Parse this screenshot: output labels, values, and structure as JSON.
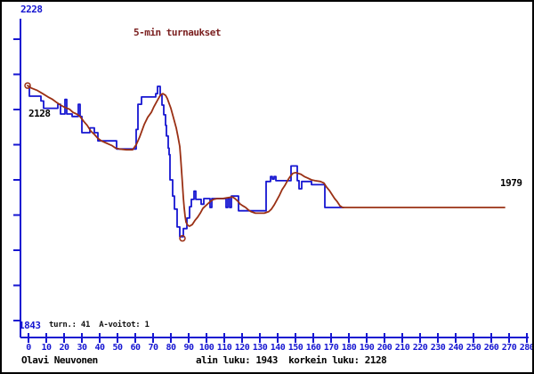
{
  "window": {
    "background": "#ffffff",
    "border_color": "#000000"
  },
  "colors": {
    "axis_blue": "#1616d1",
    "series_blue": "#1616d1",
    "series_brown": "#9a3014",
    "title_maroon": "#7b2020",
    "black_text": "#000000"
  },
  "chart_data": {
    "type": "line",
    "title": "5-min turnaukset",
    "legend": "none",
    "grid": false,
    "x_axis": {
      "ticks": [
        0,
        10,
        20,
        30,
        40,
        50,
        60,
        70,
        80,
        90,
        100,
        110,
        120,
        130,
        140,
        150,
        160,
        170,
        180,
        190,
        200,
        210,
        220,
        230,
        240,
        250,
        260,
        270,
        280
      ]
    },
    "y_axis": {
      "top_label": "2228",
      "bottom_label": "1843",
      "n_ticks": 9
    },
    "annotations": {
      "start_value_label": "2128",
      "final_value_label": "1979",
      "stats_line": "turn.: 41  A-voitot: 1"
    },
    "footer": {
      "left": "Olavi Neuvonen",
      "right": "alin luku: 1943  korkein luku: 2128"
    },
    "series": [
      {
        "name": "rating-per-tournament",
        "color_key": "series_blue",
        "points": [
          [
            0.5,
            2128
          ],
          [
            0.5,
            2116
          ],
          [
            7,
            2116
          ],
          [
            7,
            2110
          ],
          [
            8.5,
            2110
          ],
          [
            8.5,
            2101
          ],
          [
            16.5,
            2101
          ],
          [
            16.5,
            2106
          ],
          [
            18,
            2106
          ],
          [
            18,
            2094
          ],
          [
            20.5,
            2094
          ],
          [
            20.5,
            2112
          ],
          [
            21.5,
            2112
          ],
          [
            21.5,
            2094
          ],
          [
            24.5,
            2094
          ],
          [
            24.5,
            2091
          ],
          [
            28,
            2091
          ],
          [
            28,
            2106
          ],
          [
            29,
            2106
          ],
          [
            29,
            2091
          ],
          [
            30,
            2091
          ],
          [
            30,
            2071
          ],
          [
            34.5,
            2071
          ],
          [
            34.5,
            2077
          ],
          [
            37,
            2077
          ],
          [
            37,
            2071
          ],
          [
            39,
            2071
          ],
          [
            39,
            2061
          ],
          [
            49.5,
            2061
          ],
          [
            49.5,
            2051
          ],
          [
            60.5,
            2051
          ],
          [
            60.5,
            2075
          ],
          [
            61.5,
            2075
          ],
          [
            61.5,
            2106
          ],
          [
            63.5,
            2106
          ],
          [
            63.5,
            2115
          ],
          [
            71.5,
            2115
          ],
          [
            71.5,
            2119
          ],
          [
            72.5,
            2119
          ],
          [
            72.5,
            2128
          ],
          [
            74,
            2128
          ],
          [
            74,
            2117
          ],
          [
            75,
            2117
          ],
          [
            75,
            2105
          ],
          [
            76,
            2105
          ],
          [
            76,
            2093
          ],
          [
            77,
            2093
          ],
          [
            77,
            2080
          ],
          [
            77.5,
            2080
          ],
          [
            77.5,
            2067
          ],
          [
            78.5,
            2067
          ],
          [
            78.5,
            2052
          ],
          [
            79,
            2052
          ],
          [
            79,
            2044
          ],
          [
            79.5,
            2044
          ],
          [
            79.5,
            2013
          ],
          [
            81,
            2013
          ],
          [
            81,
            1993
          ],
          [
            82,
            1993
          ],
          [
            82,
            1977
          ],
          [
            83.5,
            1977
          ],
          [
            83.5,
            1955
          ],
          [
            85,
            1955
          ],
          [
            85,
            1943
          ],
          [
            87,
            1943
          ],
          [
            87,
            1953
          ],
          [
            89,
            1953
          ],
          [
            89,
            1966
          ],
          [
            90.5,
            1966
          ],
          [
            90.5,
            1980
          ],
          [
            91.5,
            1980
          ],
          [
            91.5,
            1989
          ],
          [
            93,
            1989
          ],
          [
            93,
            1999
          ],
          [
            94,
            1999
          ],
          [
            94,
            1989
          ],
          [
            97,
            1989
          ],
          [
            97,
            1983
          ],
          [
            98.5,
            1983
          ],
          [
            98.5,
            1990
          ],
          [
            102,
            1990
          ],
          [
            102,
            1979
          ],
          [
            103,
            1979
          ],
          [
            103,
            1990
          ],
          [
            111,
            1990
          ],
          [
            111,
            1979
          ],
          [
            112,
            1979
          ],
          [
            112,
            1990
          ],
          [
            113,
            1990
          ],
          [
            113,
            1979
          ],
          [
            114,
            1979
          ],
          [
            114,
            1993
          ],
          [
            118,
            1993
          ],
          [
            118,
            1975
          ],
          [
            133.5,
            1975
          ],
          [
            133.5,
            2011
          ],
          [
            136,
            2011
          ],
          [
            136,
            2017
          ],
          [
            137,
            2017
          ],
          [
            137,
            2014
          ],
          [
            138,
            2014
          ],
          [
            138,
            2017
          ],
          [
            139,
            2017
          ],
          [
            139,
            2012
          ],
          [
            147.5,
            2012
          ],
          [
            147.5,
            2030
          ],
          [
            151,
            2030
          ],
          [
            151,
            2012
          ],
          [
            152,
            2012
          ],
          [
            152,
            2002
          ],
          [
            153.5,
            2002
          ],
          [
            153.5,
            2011
          ],
          [
            159,
            2011
          ],
          [
            159,
            2007
          ],
          [
            166.5,
            2007
          ],
          [
            166.5,
            1979
          ],
          [
            177,
            1979
          ]
        ]
      },
      {
        "name": "trend",
        "color_key": "series_brown",
        "points": [
          [
            -0.5,
            2129
          ],
          [
            1.5,
            2126
          ],
          [
            5,
            2123
          ],
          [
            8,
            2119
          ],
          [
            11,
            2115
          ],
          [
            13.5,
            2112
          ],
          [
            16,
            2108
          ],
          [
            18,
            2105
          ],
          [
            20.5,
            2102
          ],
          [
            23,
            2100
          ],
          [
            25,
            2096
          ],
          [
            27,
            2094
          ],
          [
            29,
            2091
          ],
          [
            31,
            2085
          ],
          [
            33,
            2080
          ],
          [
            35,
            2073
          ],
          [
            37,
            2069
          ],
          [
            39,
            2064
          ],
          [
            41,
            2061
          ],
          [
            43,
            2059
          ],
          [
            45,
            2057
          ],
          [
            47,
            2055
          ],
          [
            49,
            2052
          ],
          [
            51,
            2051
          ],
          [
            55,
            2050
          ],
          [
            58.5,
            2050
          ],
          [
            60.5,
            2056
          ],
          [
            62.5,
            2066
          ],
          [
            65,
            2081
          ],
          [
            67,
            2090
          ],
          [
            69,
            2096
          ],
          [
            70.5,
            2103
          ],
          [
            72,
            2109
          ],
          [
            73.5,
            2115
          ],
          [
            74.5,
            2118
          ],
          [
            75.5,
            2119
          ],
          [
            77,
            2117
          ],
          [
            78,
            2113
          ],
          [
            79,
            2107
          ],
          [
            80,
            2101
          ],
          [
            81,
            2093
          ],
          [
            82,
            2085
          ],
          [
            83,
            2077
          ],
          [
            84,
            2066
          ],
          [
            85,
            2054
          ],
          [
            85.5,
            2040
          ],
          [
            86,
            2024
          ],
          [
            86.5,
            2008
          ],
          [
            87,
            1991
          ],
          [
            87.5,
            1978
          ],
          [
            88,
            1968
          ],
          [
            88.5,
            1961
          ],
          [
            89.5,
            1957
          ],
          [
            90.5,
            1956
          ],
          [
            92,
            1958
          ],
          [
            93.5,
            1963
          ],
          [
            95,
            1967
          ],
          [
            96.5,
            1972
          ],
          [
            98,
            1978
          ],
          [
            99.5,
            1981
          ],
          [
            101,
            1984
          ],
          [
            102.5,
            1987
          ],
          [
            104,
            1989
          ],
          [
            106,
            1990
          ],
          [
            109,
            1990
          ],
          [
            112,
            1991
          ],
          [
            114.5,
            1992
          ],
          [
            116,
            1990
          ],
          [
            117.5,
            1987
          ],
          [
            119,
            1983
          ],
          [
            120.5,
            1981
          ],
          [
            122,
            1979
          ],
          [
            123.5,
            1976
          ],
          [
            125,
            1974
          ],
          [
            127.5,
            1972
          ],
          [
            132.5,
            1972
          ],
          [
            135,
            1974
          ],
          [
            136.5,
            1977
          ],
          [
            138,
            1982
          ],
          [
            139.5,
            1988
          ],
          [
            141,
            1994
          ],
          [
            142.5,
            2001
          ],
          [
            144,
            2006
          ],
          [
            145.5,
            2012
          ],
          [
            147,
            2017
          ],
          [
            148.5,
            2021
          ],
          [
            150,
            2022
          ],
          [
            151.5,
            2021
          ],
          [
            153,
            2020
          ],
          [
            155,
            2017
          ],
          [
            157,
            2015
          ],
          [
            159,
            2013
          ],
          [
            161,
            2012
          ],
          [
            164,
            2011
          ],
          [
            166,
            2009
          ],
          [
            167.5,
            2004
          ],
          [
            169,
            2000
          ],
          [
            170.5,
            1995
          ],
          [
            172,
            1990
          ],
          [
            173.5,
            1986
          ],
          [
            175,
            1981
          ],
          [
            176.5,
            1979
          ],
          [
            267.5,
            1979
          ]
        ]
      }
    ],
    "markers": [
      {
        "name": "start-marker",
        "t": -0.5,
        "value": 2129
      },
      {
        "name": "low-marker",
        "t": 86.5,
        "value": 1941
      }
    ]
  }
}
